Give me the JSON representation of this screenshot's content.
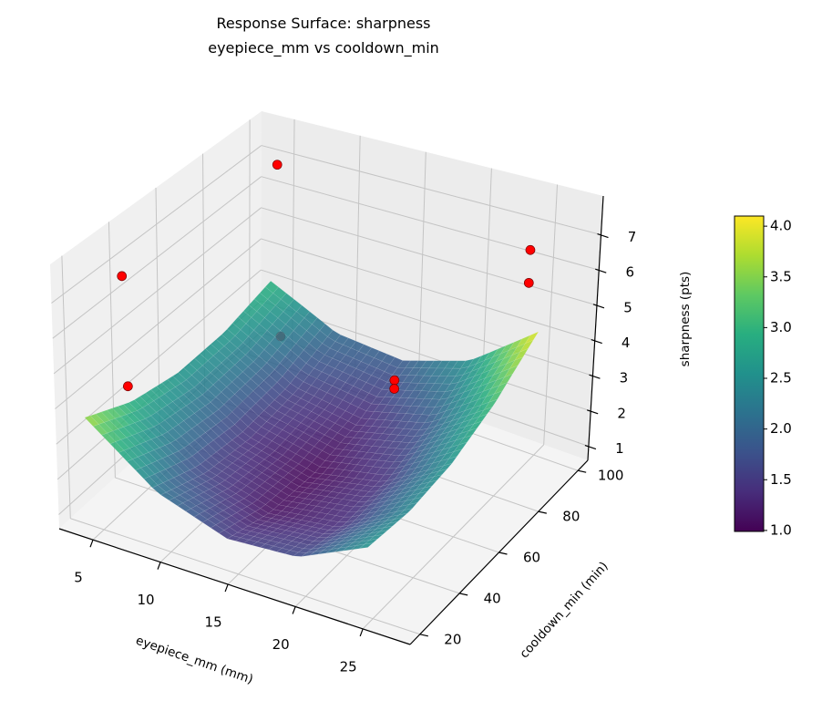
{
  "chart_data": {
    "type": "surface",
    "title": [
      "Response Surface: sharpness",
      "eyepiece_mm vs cooldown_min"
    ],
    "xlabel": "eyepiece_mm (mm)",
    "ylabel": "cooldown_min (min)",
    "zlabel": "sharpness (pts)",
    "xlim": [
      2.5,
      28.5
    ],
    "ylim": [
      15,
      105
    ],
    "zlim": [
      0.6,
      8.1
    ],
    "xticks": [
      5,
      10,
      15,
      20,
      25
    ],
    "yticks": [
      20,
      40,
      60,
      80,
      100
    ],
    "zticks": [
      1,
      2,
      3,
      4,
      5,
      6,
      7
    ],
    "grid": true,
    "colormap": "viridis",
    "surface": {
      "x": [
        3.8,
        9.0,
        14.2,
        19.4,
        24.6
      ],
      "y": [
        20,
        40.5,
        61,
        81.5,
        102
      ],
      "z": [
        [
          3.65,
          2.18,
          1.51,
          1.65,
          2.59
        ],
        [
          2.97,
          1.63,
          1.09,
          1.36,
          2.43
        ],
        [
          2.64,
          1.43,
          1.01,
          1.41,
          2.6
        ],
        [
          2.65,
          1.56,
          1.28,
          1.8,
          3.12
        ],
        [
          3.0,
          2.04,
          1.88,
          2.53,
          3.99
        ]
      ]
    },
    "scatter": [
      {
        "x": 4.6,
        "y": 100,
        "z": 6.9
      },
      {
        "x": 3.8,
        "y": 37.5,
        "z": 6.8
      },
      {
        "x": 3.8,
        "y": 39,
        "z": 3.5
      },
      {
        "x": 4.6,
        "y": 102,
        "z": 1.35
      },
      {
        "x": 18.6,
        "y": 70.8,
        "z": 3.7
      },
      {
        "x": 18.6,
        "y": 70.8,
        "z": 3.45
      },
      {
        "x": 24.6,
        "y": 96,
        "z": 6.7
      },
      {
        "x": 24.6,
        "y": 96,
        "z": 5.75
      }
    ],
    "point_color": "#ff0000",
    "colorbar": {
      "range": [
        0.99,
        4.1
      ],
      "ticks": [
        "1.0",
        "1.5",
        "2.0",
        "2.5",
        "3.0",
        "3.5",
        "4.0"
      ]
    }
  }
}
